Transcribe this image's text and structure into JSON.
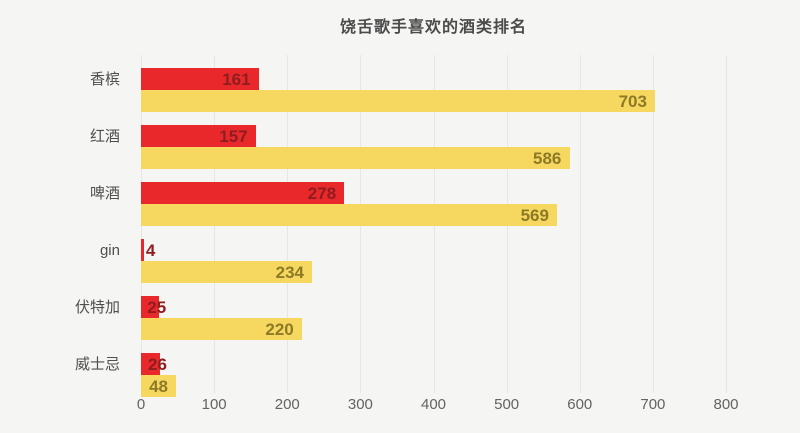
{
  "title": "饶舌歌手喜欢的酒类排名",
  "chart_data": {
    "type": "bar",
    "orientation": "horizontal",
    "title": "饶舌歌手喜欢的酒类排名",
    "categories": [
      "香槟",
      "红酒",
      "啤酒",
      "gin",
      "伏特加",
      "威士忌"
    ],
    "series": [
      {
        "name": "red-series",
        "color": "#e9282c",
        "label_color": "#8e1d1f",
        "values": [
          161,
          157,
          278,
          4,
          25,
          26
        ]
      },
      {
        "name": "yellow-series",
        "color": "#f6d75f",
        "label_color": "#8d7a26",
        "values": [
          703,
          586,
          569,
          234,
          220,
          48
        ]
      }
    ],
    "xlabel": "",
    "ylabel": "",
    "xlim": [
      0,
      800
    ],
    "x_ticks": [
      0,
      100,
      200,
      300,
      400,
      500,
      600,
      700,
      800
    ],
    "grid": "vertical-only",
    "legend_position": "none",
    "background": "#f5f5f3"
  }
}
